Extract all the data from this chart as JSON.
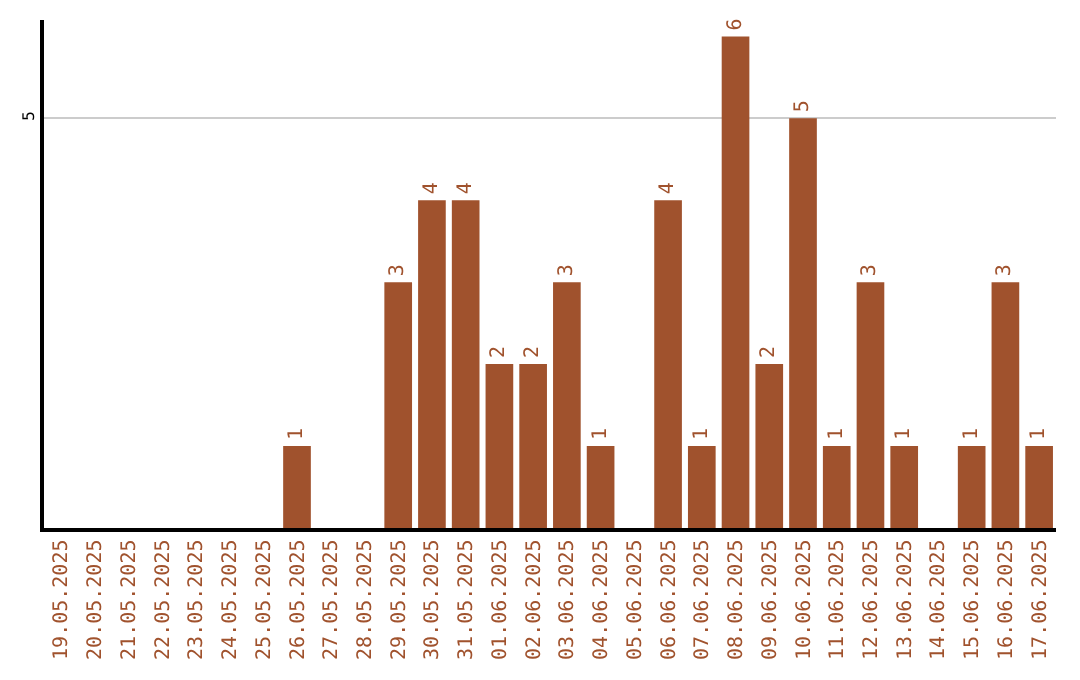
{
  "chart_data": {
    "type": "bar",
    "categories": [
      "19.05.2025",
      "20.05.2025",
      "21.05.2025",
      "22.05.2025",
      "23.05.2025",
      "24.05.2025",
      "25.05.2025",
      "26.05.2025",
      "27.05.2025",
      "28.05.2025",
      "29.05.2025",
      "30.05.2025",
      "31.05.2025",
      "01.06.2025",
      "02.06.2025",
      "03.06.2025",
      "04.06.2025",
      "05.06.2025",
      "06.06.2025",
      "07.06.2025",
      "08.06.2025",
      "09.06.2025",
      "10.06.2025",
      "11.06.2025",
      "12.06.2025",
      "13.06.2025",
      "14.06.2025",
      "15.06.2025",
      "16.06.2025",
      "17.06.2025"
    ],
    "values": [
      0,
      0,
      0,
      0,
      0,
      0,
      0,
      1,
      0,
      0,
      3,
      4,
      4,
      2,
      2,
      3,
      1,
      0,
      4,
      1,
      6,
      2,
      5,
      1,
      3,
      1,
      0,
      1,
      3,
      1
    ],
    "value_labels": [
      null,
      null,
      null,
      null,
      null,
      null,
      null,
      "1",
      null,
      null,
      "3",
      "4",
      "4",
      "2",
      "2",
      "3",
      "1",
      null,
      "4",
      "1",
      "6",
      "2",
      "5",
      "1",
      "3",
      "1",
      null,
      "1",
      "3",
      "1"
    ],
    "color": "#a0522d",
    "ylim": [
      0,
      6.2
    ],
    "yticks": [
      5
    ],
    "grid": "y"
  }
}
